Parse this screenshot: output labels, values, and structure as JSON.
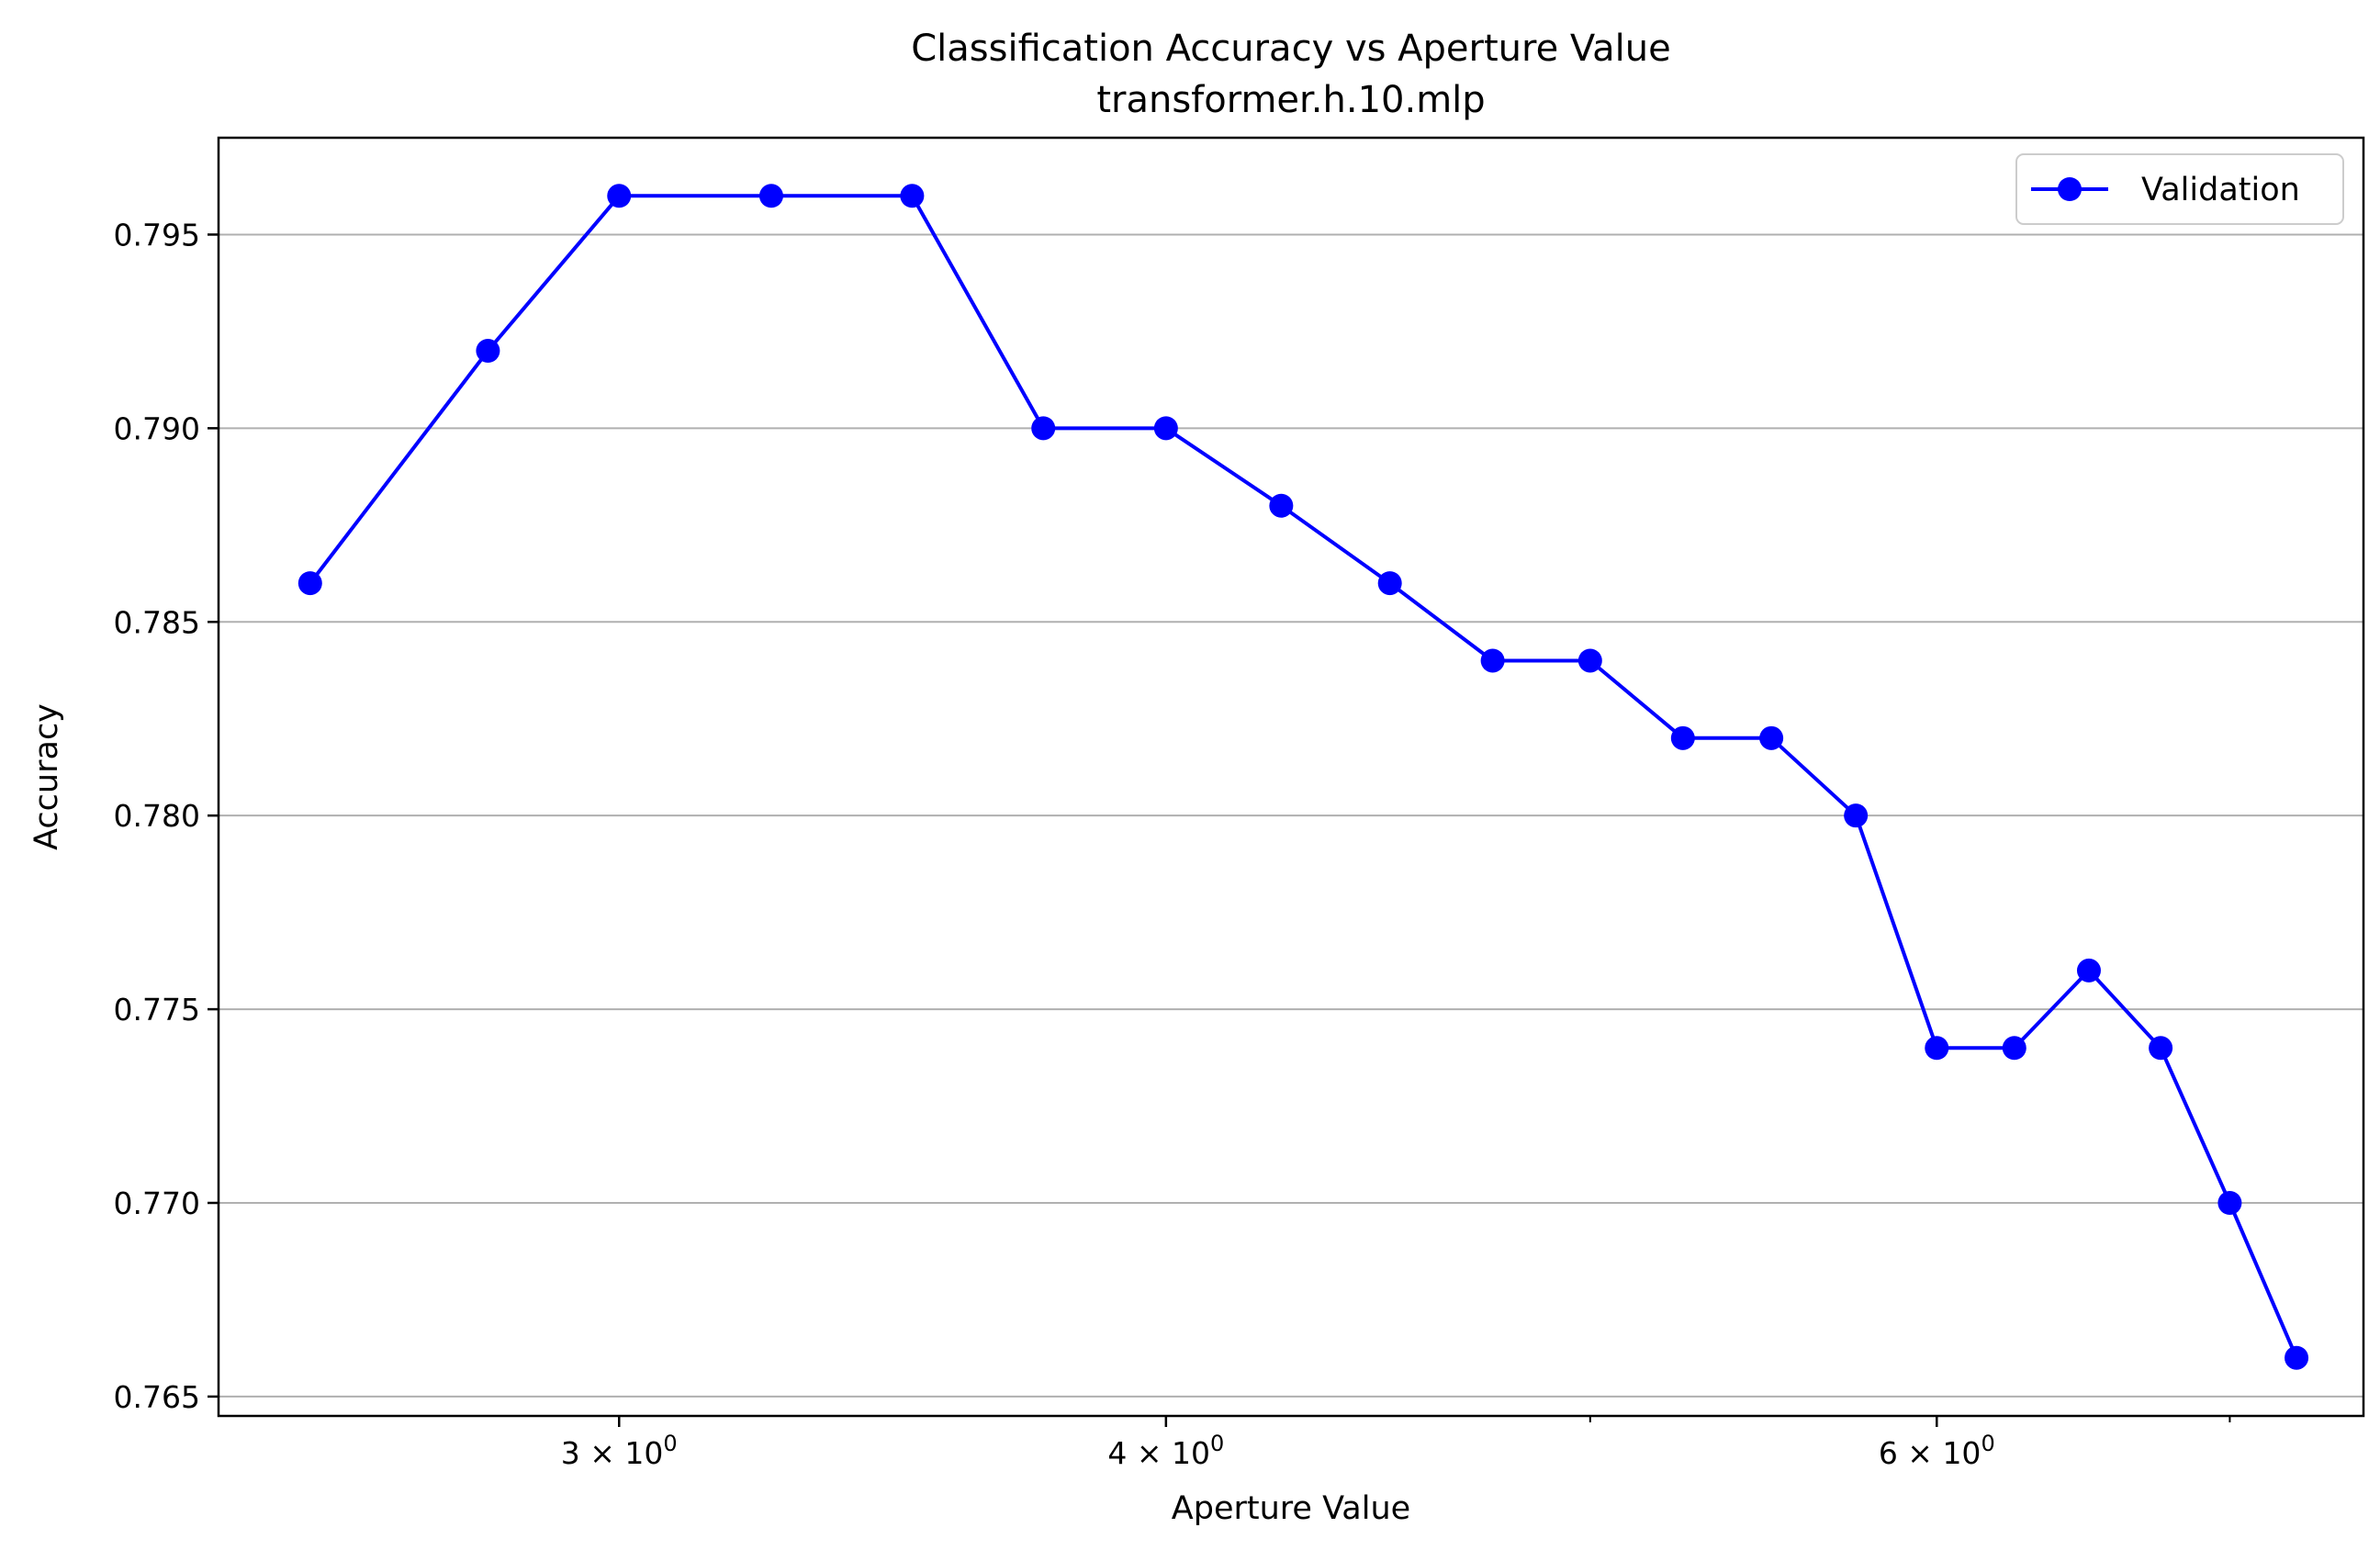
{
  "chart_data": {
    "type": "line",
    "title": "Classification Accuracy vs Aperture Value",
    "subtitle": "transformer.h.10.mlp",
    "xlabel": "Aperture Value",
    "ylabel": "Accuracy",
    "x_scale": "log",
    "xlim": [
      2.43,
      7.51
    ],
    "ylim": [
      0.7645,
      0.7975
    ],
    "x_major_ticks": [
      {
        "value": 3,
        "label": "3 × 10",
        "exp": "0"
      },
      {
        "value": 4,
        "label": "4 × 10",
        "exp": "0"
      },
      {
        "value": 6,
        "label": "6 × 10",
        "exp": "0"
      }
    ],
    "x_minor_ticks": [
      5,
      7
    ],
    "y_ticks": [
      0.765,
      0.77,
      0.775,
      0.78,
      0.785,
      0.79,
      0.795
    ],
    "y_tick_labels": [
      "0.765",
      "0.770",
      "0.775",
      "0.780",
      "0.785",
      "0.790",
      "0.795"
    ],
    "grid": "horizontal",
    "legend_position": "top-right",
    "series": [
      {
        "name": "Validation",
        "color": "#0000ff",
        "marker": "circle",
        "x": [
          2.55,
          2.8,
          3.0,
          3.25,
          3.5,
          3.75,
          4.0,
          4.25,
          4.5,
          4.75,
          5.0,
          5.25,
          5.5,
          5.75,
          6.0,
          6.25,
          6.5,
          6.75,
          7.0,
          7.25
        ],
        "y": [
          0.786,
          0.792,
          0.796,
          0.796,
          0.796,
          0.79,
          0.79,
          0.788,
          0.786,
          0.784,
          0.784,
          0.782,
          0.782,
          0.78,
          0.774,
          0.774,
          0.776,
          0.774,
          0.77,
          0.766
        ]
      }
    ]
  }
}
